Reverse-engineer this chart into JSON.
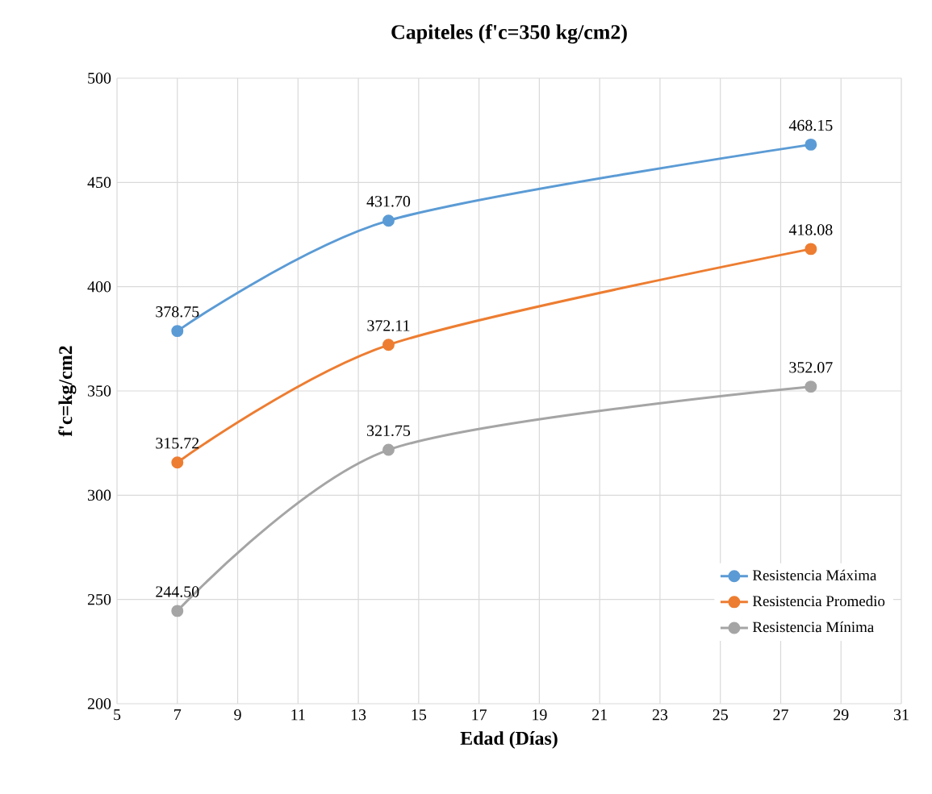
{
  "chart_data": {
    "type": "line",
    "title": "Capiteles (f'c=350 kg/cm2)",
    "xlabel": "Edad (Días)",
    "ylabel": "f'c=kg/cm2",
    "x": [
      7,
      14,
      28
    ],
    "series": [
      {
        "name": "Resistencia Máxima",
        "color": "#5b9bd5",
        "values": [
          378.75,
          431.7,
          468.15
        ],
        "value_labels": [
          "378.75",
          "431.70",
          "468.15"
        ]
      },
      {
        "name": "Resistencia Promedio",
        "color": "#ed7d31",
        "values": [
          315.72,
          372.11,
          418.08
        ],
        "value_labels": [
          "315.72",
          "372.11",
          "418.08"
        ]
      },
      {
        "name": "Resistencia Mínima",
        "color": "#a5a5a5",
        "values": [
          244.5,
          321.75,
          352.07
        ],
        "value_labels": [
          "244.50",
          "321.75",
          "352.07"
        ]
      }
    ],
    "xlim": [
      5,
      31
    ],
    "xticks": [
      5,
      7,
      9,
      11,
      13,
      15,
      17,
      19,
      21,
      23,
      25,
      27,
      29,
      31
    ],
    "ylim": [
      200,
      500
    ],
    "yticks": [
      200,
      250,
      300,
      350,
      400,
      450,
      500
    ],
    "grid": true,
    "legend": "bottom right",
    "marker": "circle",
    "line_style": "solid"
  }
}
